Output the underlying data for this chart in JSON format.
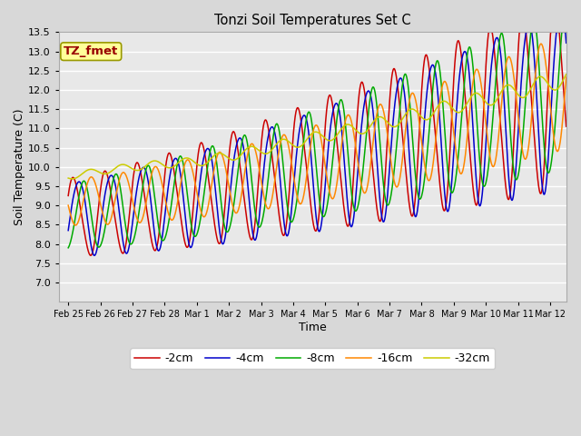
{
  "title": "Tonzi Soil Temperatures Set C",
  "xlabel": "Time",
  "ylabel": "Soil Temperature (C)",
  "xlim": [
    -0.3,
    15.5
  ],
  "ylim": [
    6.5,
    13.5
  ],
  "yticks": [
    7.0,
    7.5,
    8.0,
    8.5,
    9.0,
    9.5,
    10.0,
    10.5,
    11.0,
    11.5,
    12.0,
    12.5,
    13.0,
    13.5
  ],
  "xtick_labels": [
    "Feb 25",
    "Feb 26",
    "Feb 27",
    "Feb 28",
    "Mar 1",
    "Mar 2",
    "Mar 3",
    "Mar 4",
    "Mar 5",
    "Mar 6",
    "Mar 7",
    "Mar 8",
    "Mar 9",
    "Mar 10",
    "Mar 11",
    "Mar 12"
  ],
  "xtick_positions": [
    0,
    1,
    2,
    3,
    4,
    5,
    6,
    7,
    8,
    9,
    10,
    11,
    12,
    13,
    14,
    15
  ],
  "legend_labels": [
    "-2cm",
    "-4cm",
    "-8cm",
    "-16cm",
    "-32cm"
  ],
  "line_colors": [
    "#cc0000",
    "#0000cc",
    "#00aa00",
    "#ff8800",
    "#cccc00"
  ],
  "fig_bg_color": "#d8d8d8",
  "plot_bg_color": "#e8e8e8",
  "annotation_text": "TZ_fmet",
  "annotation_bg": "#ffff99",
  "annotation_color": "#990000",
  "annotation_edge": "#999900"
}
